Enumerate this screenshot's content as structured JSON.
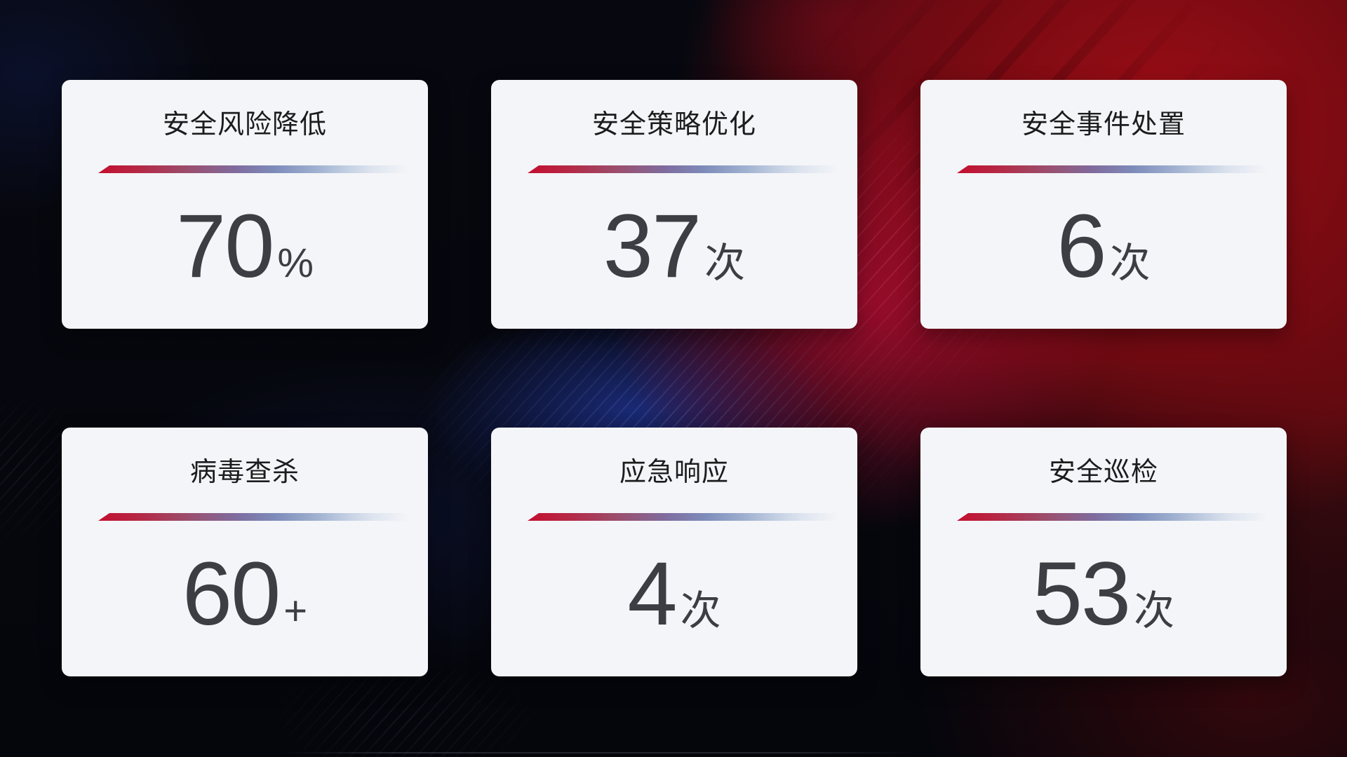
{
  "theme": {
    "card_bg": "#f4f5f8",
    "title_color": "#1c1c1e",
    "value_color": "#3d3e43",
    "divider_red": "#c40e2f",
    "divider_blue": "#7d8cba",
    "bg_red": "#9c0d15",
    "bg_crimson": "#af0d32",
    "bg_blue": "#1b2c7d",
    "bg_dark": "#05060c"
  },
  "cards": [
    {
      "title": "安全风险降低",
      "value": "70",
      "unit": "%"
    },
    {
      "title": "安全策略优化",
      "value": "37",
      "unit": "次"
    },
    {
      "title": "安全事件处置",
      "value": "6",
      "unit": "次"
    },
    {
      "title": "病毒查杀",
      "value": "60",
      "unit": "+"
    },
    {
      "title": "应急响应",
      "value": "4",
      "unit": "次"
    },
    {
      "title": "安全巡检",
      "value": "53",
      "unit": "次"
    }
  ]
}
